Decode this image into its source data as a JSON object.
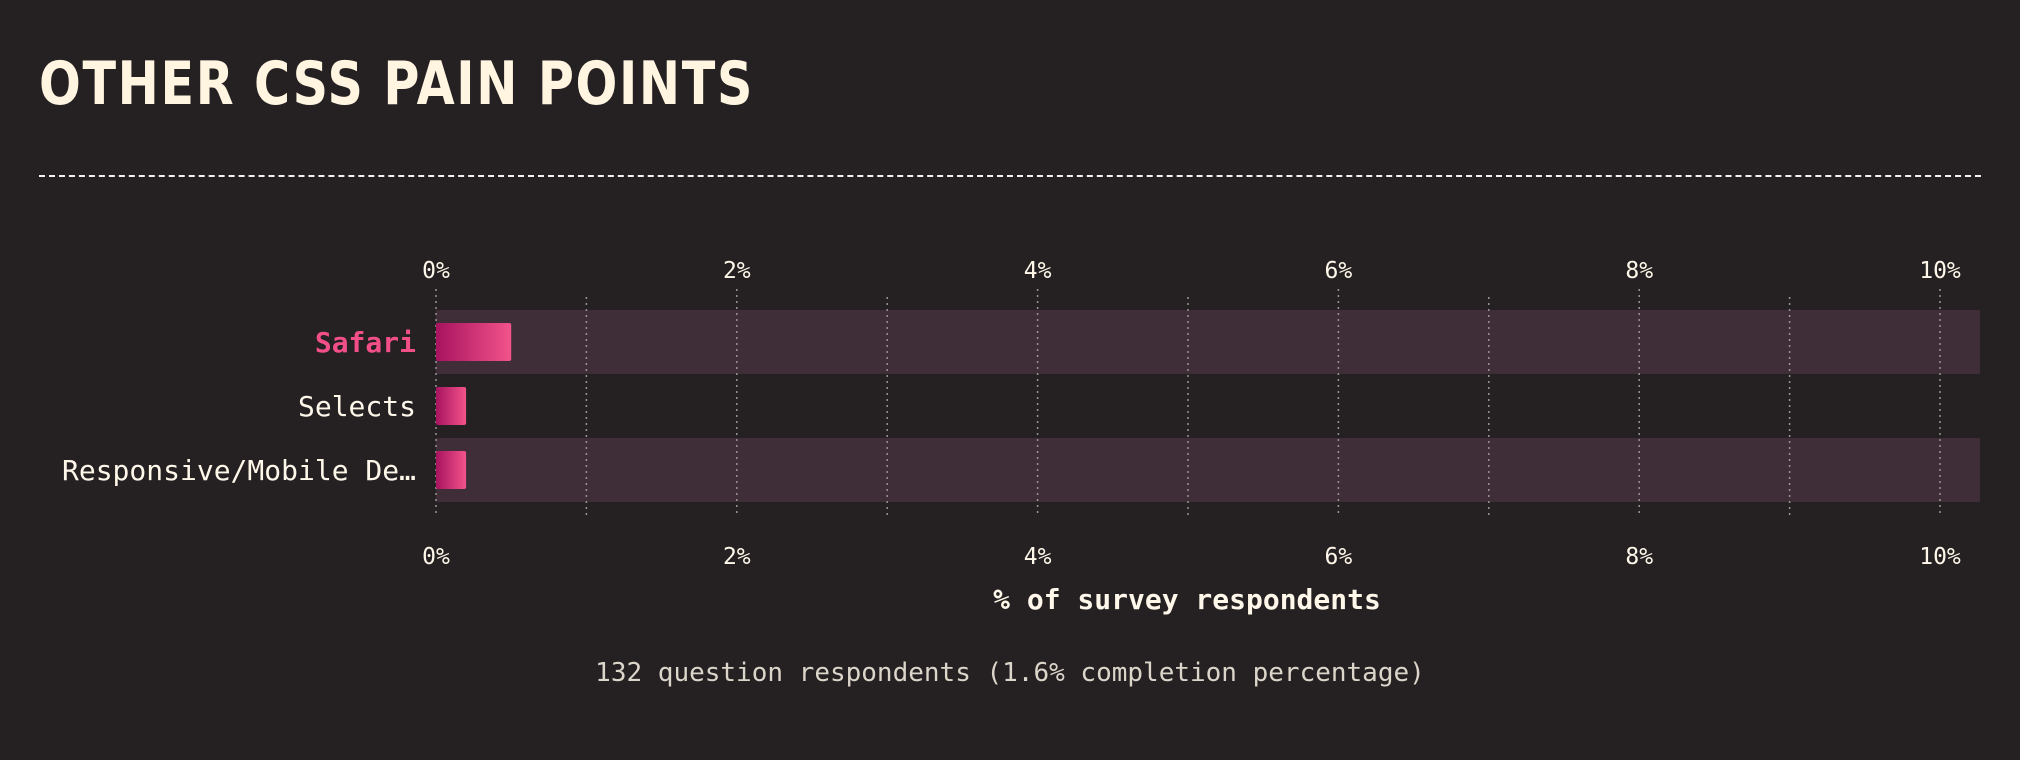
{
  "page": {
    "title": "OTHER CSS PAIN POINTS",
    "note": "132 question respondents (1.6% completion percentage)"
  },
  "colors": {
    "background": "#252122",
    "band": "#3f2e38",
    "bar_start": "#a8135f",
    "bar_end": "#f2538a",
    "highlight_text": "#f24f89",
    "text": "#fff8ea"
  },
  "chart_data": {
    "type": "bar",
    "orientation": "horizontal",
    "categories": [
      "Safari",
      "Selects",
      "Responsive/Mobile De…"
    ],
    "values": [
      0.5,
      0.2,
      0.2
    ],
    "highlighted_category": "Safari",
    "xlabel": "% of survey respondents",
    "xlim": [
      0,
      10
    ],
    "x_ticks": [
      "0%",
      "2%",
      "4%",
      "6%",
      "8%",
      "10%"
    ],
    "grid": "vertical dotted",
    "axis_labels_position": "top and bottom"
  }
}
